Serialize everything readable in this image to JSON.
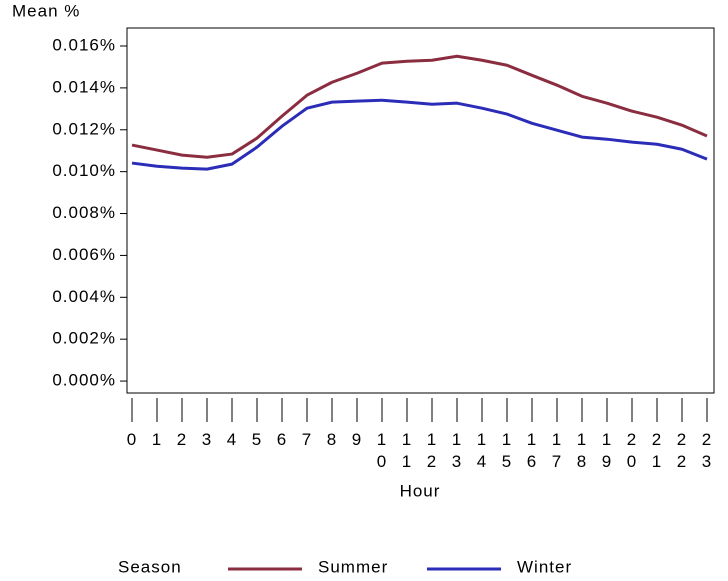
{
  "chart_data": {
    "type": "line",
    "ylabel": "Mean %",
    "xlabel": "Hour",
    "legend_title": "Season",
    "categories": [
      "0",
      "1",
      "2",
      "3",
      "4",
      "5",
      "6",
      "7",
      "8",
      "9",
      "10",
      "11",
      "12",
      "13",
      "14",
      "15",
      "16",
      "17",
      "18",
      "19",
      "20",
      "21",
      "22",
      "23"
    ],
    "series": [
      {
        "name": "Summer",
        "color": "#8b2d40",
        "values": [
          0.01127,
          0.01103,
          0.01079,
          0.01069,
          0.01084,
          0.0116,
          0.01265,
          0.01365,
          0.01427,
          0.0147,
          0.01518,
          0.01527,
          0.01532,
          0.01551,
          0.01532,
          0.01508,
          0.0146,
          0.01413,
          0.0136,
          0.01327,
          0.01289,
          0.0126,
          0.01222,
          0.0117
        ]
      },
      {
        "name": "Winter",
        "color": "#2b2db8",
        "values": [
          0.01041,
          0.01026,
          0.01017,
          0.01012,
          0.01036,
          0.01117,
          0.01217,
          0.01303,
          0.01332,
          0.01337,
          0.01341,
          0.01332,
          0.01322,
          0.01327,
          0.01303,
          0.01275,
          0.01231,
          0.01198,
          0.01165,
          0.01155,
          0.01141,
          0.01131,
          0.01107,
          0.0106
        ]
      }
    ],
    "ylim": [
      -0.00057,
      0.01686
    ],
    "yticks": [
      {
        "value": 0,
        "label": "0.000%"
      },
      {
        "value": 0.002,
        "label": "0.002%"
      },
      {
        "value": 0.004,
        "label": "0.004%"
      },
      {
        "value": 0.006,
        "label": "0.006%"
      },
      {
        "value": 0.008,
        "label": "0.008%"
      },
      {
        "value": 0.01,
        "label": "0.010%"
      },
      {
        "value": 0.012,
        "label": "0.012%"
      },
      {
        "value": 0.014,
        "label": "0.014%"
      },
      {
        "value": 0.016,
        "label": "0.016%"
      }
    ],
    "grid": false
  }
}
